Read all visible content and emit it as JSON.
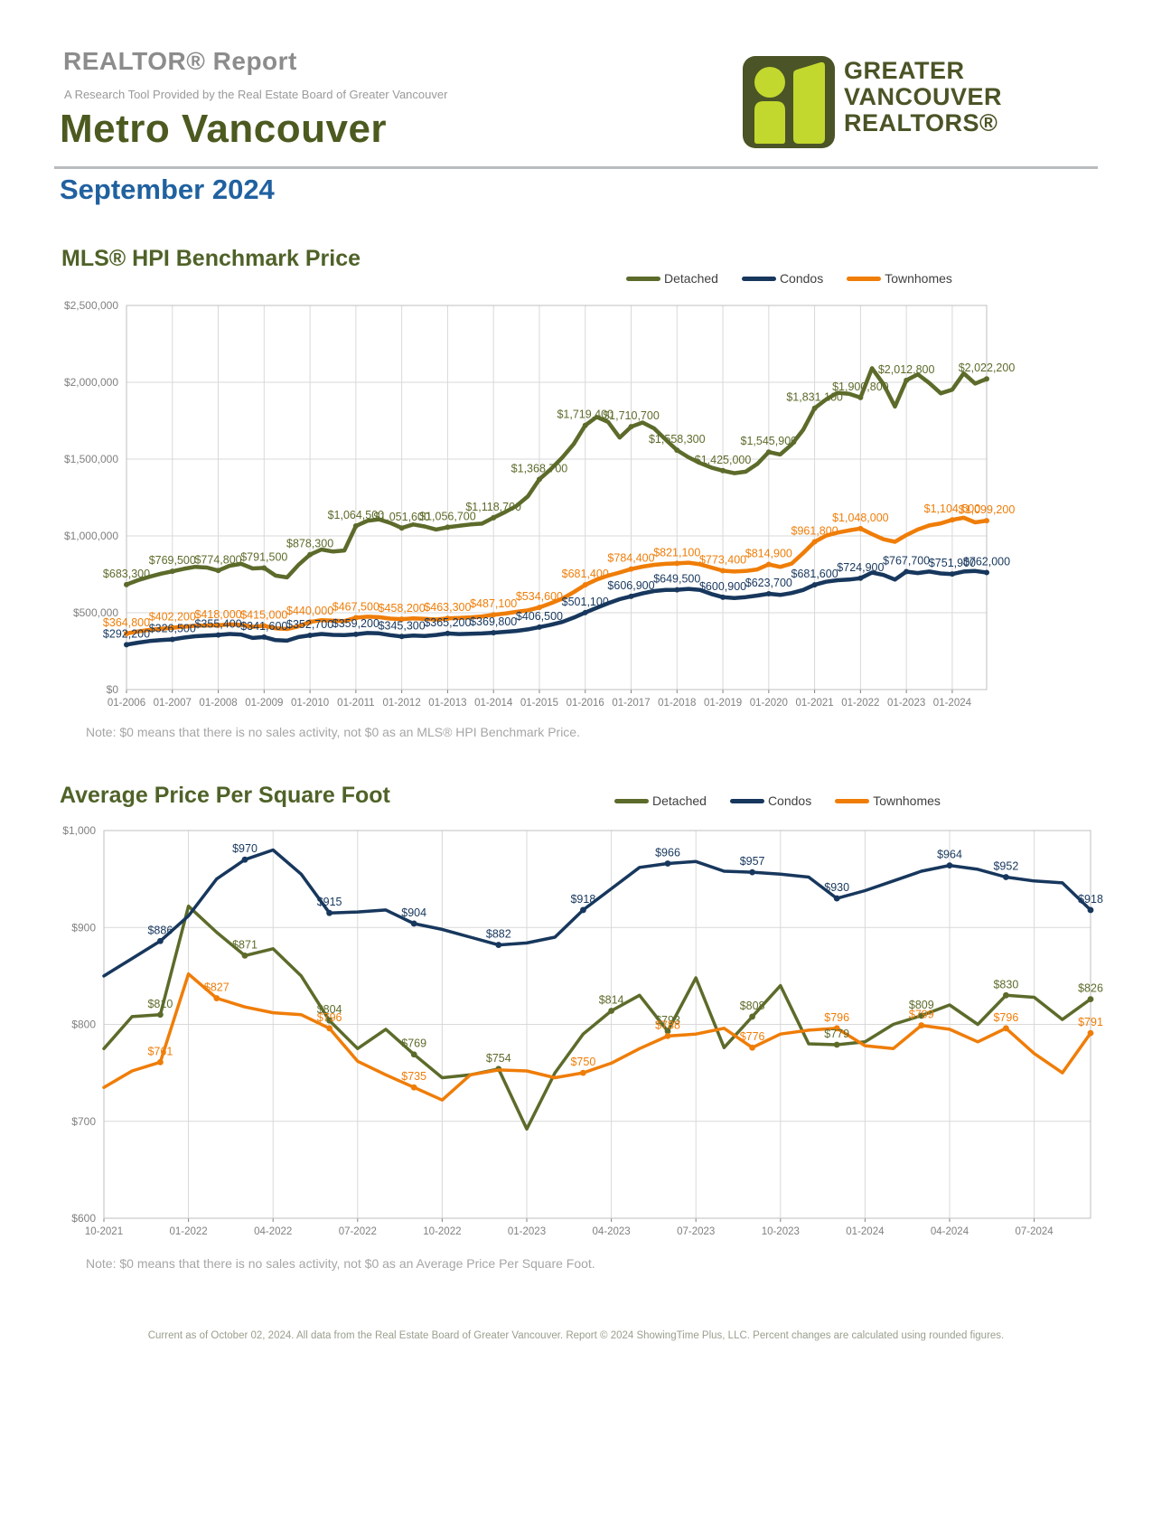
{
  "header": {
    "report_title": "REALTOR® Report",
    "tagline": "A Research Tool Provided by the Real Estate Board of Greater Vancouver",
    "region": "Metro Vancouver",
    "period": "September 2024"
  },
  "logo": {
    "line1": "GREATER",
    "line2": "VANCOUVER",
    "line3": "REALTORS®"
  },
  "colors": {
    "detached": "#5c6b2a",
    "condos": "#17375d",
    "townhomes": "#ef7d08",
    "grid": "#d9d9d9",
    "frame": "#bfbfbf",
    "title_green": "#4f6228",
    "period_blue": "#2061a0",
    "logo_dark": "#4a5426",
    "logo_lime": "#c3d82e"
  },
  "chart_data": [
    {
      "type": "line",
      "title": "MLS® HPI Benchmark Price",
      "note": "Note: $0 means that there is no sales activity, not $0 as an MLS® HPI Benchmark Price.",
      "grid": true,
      "legend_position": "top-right",
      "y_min": 0,
      "y_max": 2500000,
      "y_ticks": [
        "$0",
        "$500,000",
        "$1,000,000",
        "$1,500,000",
        "$2,000,000",
        "$2,500,000"
      ],
      "x_tick_labels": [
        "01-2006",
        "01-2007",
        "01-2008",
        "01-2009",
        "01-2010",
        "01-2011",
        "01-2012",
        "01-2013",
        "01-2014",
        "01-2015",
        "01-2016",
        "01-2017",
        "01-2018",
        "01-2019",
        "01-2020",
        "01-2021",
        "01-2022",
        "01-2023",
        "01-2024"
      ],
      "x_tick_indices": [
        0,
        4,
        8,
        12,
        16,
        20,
        24,
        28,
        32,
        36,
        40,
        44,
        48,
        52,
        56,
        60,
        64,
        68,
        72
      ],
      "point_count": 76,
      "series": [
        {
          "name": "Detached",
          "color_key": "detached",
          "values": [
            683300,
            712000,
            734000,
            754000,
            769500,
            786000,
            799000,
            794000,
            774800,
            806000,
            818000,
            788000,
            791500,
            742000,
            730000,
            812000,
            878300,
            912000,
            898000,
            905000,
            1064500,
            1098000,
            1108000,
            1085000,
            1051600,
            1075000,
            1062000,
            1042000,
            1056700,
            1066000,
            1075000,
            1080000,
            1118700,
            1155000,
            1195000,
            1258000,
            1368700,
            1435000,
            1510000,
            1598000,
            1719400,
            1775000,
            1742000,
            1640000,
            1710700,
            1738000,
            1700000,
            1628000,
            1558300,
            1512000,
            1475000,
            1445000,
            1425000,
            1408000,
            1418000,
            1468000,
            1545900,
            1530000,
            1595000,
            1690000,
            1831100,
            1888000,
            1932000,
            1925000,
            1900800,
            2092000,
            1988000,
            1842000,
            2012800,
            2052000,
            1995000,
            1928000,
            1952000,
            2058000,
            1992000,
            2022200
          ],
          "label_indices": [
            0,
            4,
            8,
            12,
            16,
            20,
            24,
            28,
            32,
            36,
            40,
            44,
            48,
            52,
            56,
            60,
            64,
            68,
            75
          ]
        },
        {
          "name": "Condos",
          "color_key": "condos",
          "values": [
            292200,
            305000,
            316000,
            322000,
            326500,
            338000,
            347000,
            352000,
            355400,
            362000,
            358000,
            336000,
            341600,
            322000,
            318000,
            342000,
            352700,
            362000,
            356000,
            354000,
            359200,
            368000,
            366000,
            354000,
            345300,
            352000,
            349000,
            355000,
            365200,
            361000,
            363000,
            365000,
            369800,
            376000,
            382000,
            392000,
            406500,
            422000,
            440000,
            468000,
            501100,
            532000,
            562000,
            588000,
            606900,
            626000,
            641000,
            648000,
            649500,
            655000,
            648000,
            622000,
            600900,
            596000,
            602000,
            612000,
            623700,
            616000,
            628000,
            648000,
            681600,
            702000,
            712000,
            716000,
            724900,
            762000,
            746000,
            716000,
            767700,
            758000,
            768000,
            756000,
            751900,
            768000,
            772000,
            762000
          ],
          "label_indices": [
            0,
            4,
            8,
            12,
            16,
            20,
            24,
            28,
            32,
            36,
            40,
            44,
            48,
            52,
            56,
            60,
            64,
            68,
            72,
            75
          ]
        },
        {
          "name": "Townhomes",
          "color_key": "townhomes",
          "values": [
            364800,
            378000,
            388000,
            396000,
            402200,
            409000,
            415000,
            417000,
            418000,
            424000,
            421000,
            408000,
            415000,
            398000,
            394000,
            412000,
            440000,
            452000,
            449000,
            446000,
            467500,
            474000,
            471000,
            462000,
            458200,
            463000,
            460000,
            456000,
            463300,
            466000,
            470000,
            476000,
            487100,
            495000,
            506000,
            516000,
            534600,
            562000,
            592000,
            634000,
            681400,
            716000,
            742000,
            762000,
            784400,
            800000,
            812000,
            818000,
            821100,
            826000,
            815000,
            794000,
            773400,
            768000,
            772000,
            782000,
            814900,
            798000,
            820000,
            888000,
            961800,
            1002000,
            1022000,
            1036000,
            1048000,
            1012000,
            978000,
            962000,
            1005000,
            1042000,
            1068000,
            1082000,
            1104500,
            1118000,
            1088000,
            1099200
          ],
          "label_indices": [
            0,
            4,
            8,
            12,
            16,
            20,
            24,
            28,
            32,
            36,
            40,
            44,
            48,
            52,
            56,
            60,
            64,
            72,
            75
          ]
        }
      ]
    },
    {
      "type": "line",
      "title": "Average Price Per Square Foot",
      "note": "Note: $0 means that there is no sales activity, not $0 as an Average Price Per Square Foot.",
      "grid": true,
      "legend_position": "top-right",
      "y_min": 600,
      "y_max": 1000,
      "y_ticks": [
        "$600",
        "$700",
        "$800",
        "$900",
        "$1,000"
      ],
      "x_tick_labels": [
        "10-2021",
        "01-2022",
        "04-2022",
        "07-2022",
        "10-2022",
        "01-2023",
        "04-2023",
        "07-2023",
        "10-2023",
        "01-2024",
        "04-2024",
        "07-2024"
      ],
      "x_tick_indices": [
        0,
        3,
        6,
        9,
        12,
        15,
        18,
        21,
        24,
        27,
        30,
        33
      ],
      "point_count": 36,
      "series": [
        {
          "name": "Detached",
          "color_key": "detached",
          "values": [
            775,
            808,
            810,
            922,
            895,
            871,
            878,
            850,
            804,
            775,
            795,
            769,
            745,
            748,
            754,
            692,
            750,
            790,
            814,
            830,
            793,
            848,
            776,
            808,
            840,
            780,
            779,
            782,
            800,
            809,
            820,
            800,
            830,
            828,
            805,
            826
          ],
          "label_indices": [
            2,
            5,
            8,
            11,
            14,
            18,
            20,
            23,
            26,
            29,
            32,
            35
          ]
        },
        {
          "name": "Condos",
          "color_key": "condos",
          "values": [
            850,
            868,
            886,
            912,
            950,
            970,
            980,
            955,
            915,
            916,
            918,
            904,
            898,
            890,
            882,
            884,
            890,
            918,
            940,
            962,
            966,
            968,
            958,
            957,
            955,
            952,
            930,
            938,
            948,
            958,
            964,
            960,
            952,
            948,
            946,
            918
          ],
          "label_indices": [
            2,
            5,
            8,
            11,
            14,
            17,
            20,
            23,
            26,
            30,
            32,
            35
          ]
        },
        {
          "name": "Townhomes",
          "color_key": "townhomes",
          "values": [
            735,
            752,
            761,
            852,
            827,
            818,
            812,
            810,
            796,
            762,
            748,
            735,
            722,
            748,
            753,
            752,
            745,
            750,
            760,
            775,
            788,
            790,
            796,
            776,
            790,
            794,
            796,
            778,
            775,
            799,
            795,
            782,
            796,
            770,
            750,
            791
          ],
          "label_indices": [
            2,
            4,
            8,
            11,
            17,
            20,
            23,
            26,
            29,
            32,
            35
          ]
        }
      ]
    }
  ],
  "footer": {
    "text": "Current as of October 02, 2024.  All data from the Real Estate Board of Greater Vancouver.  Report © 2024 ShowingTime Plus, LLC. Percent changes are calculated using rounded figures."
  }
}
